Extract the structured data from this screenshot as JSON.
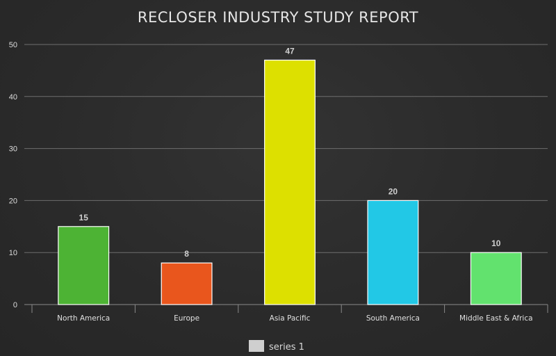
{
  "chart_data": {
    "type": "bar",
    "title": "RECLOSER INDUSTRY STUDY REPORT",
    "categories": [
      "North America",
      "Europe",
      "Asia Pacific",
      "South America",
      "Middle East & Africa"
    ],
    "series": [
      {
        "name": "series 1",
        "values": [
          15,
          8,
          47,
          20,
          10
        ],
        "colors": [
          "#4db334",
          "#e9561d",
          "#dde000",
          "#22c8e6",
          "#62e26e"
        ]
      }
    ],
    "ylim": [
      0,
      50
    ],
    "yticks": [
      0,
      10,
      20,
      30,
      40,
      50
    ],
    "grid": true,
    "legend_position": "bottom",
    "legend_swatch_color": "#cfcfcf",
    "bar_border_color": "#ffffff"
  }
}
